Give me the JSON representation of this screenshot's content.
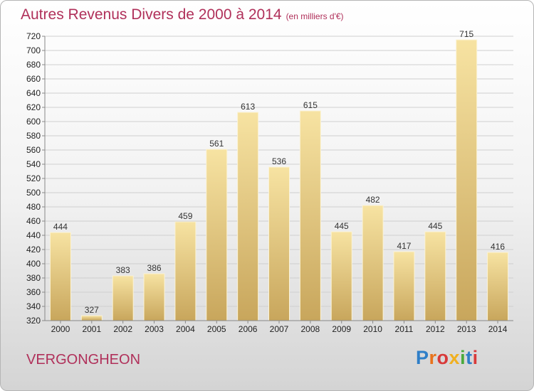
{
  "title": {
    "main": "Autres Revenus Divers de 2000 à 2014",
    "unit": "(en milliers d'€)"
  },
  "commune": "VERGONGHEON",
  "logo": {
    "text": "Proxiti",
    "letter_colors": [
      "#2f7fc8",
      "#e8731c",
      "#d83a3a",
      "#f0b020",
      "#4aaa3c",
      "#2f7fc8",
      "#d83a3a"
    ]
  },
  "colors": {
    "bar_light": "#f7e3a2",
    "bar_dark": "#c8a65c",
    "grid": "#cfcfcf",
    "accent": "#b0305a"
  },
  "chart_data": {
    "type": "bar",
    "title": "Autres Revenus Divers de 2000 à 2014",
    "ylabel": "(en milliers d'€)",
    "xlabel": "",
    "categories": [
      "2000",
      "2001",
      "2002",
      "2003",
      "2004",
      "2005",
      "2006",
      "2007",
      "2008",
      "2009",
      "2010",
      "2011",
      "2012",
      "2013",
      "2014"
    ],
    "values": [
      444,
      327,
      383,
      386,
      459,
      561,
      613,
      536,
      615,
      445,
      482,
      417,
      445,
      715,
      416
    ],
    "ylim": [
      320,
      720
    ],
    "yticks": [
      320,
      340,
      360,
      380,
      400,
      420,
      440,
      460,
      480,
      500,
      520,
      540,
      560,
      580,
      600,
      620,
      640,
      660,
      680,
      700,
      720
    ],
    "grid": true,
    "data_labels": true
  }
}
